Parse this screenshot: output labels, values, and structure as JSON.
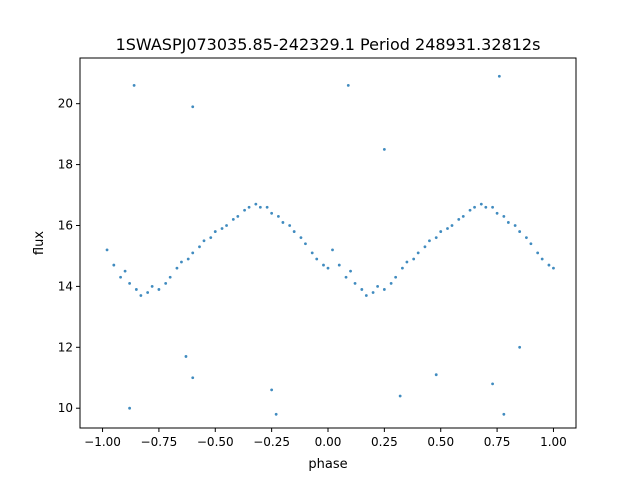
{
  "chart_data": {
    "type": "scatter",
    "title": "1SWASPJ073035.85-242329.1 Period 248931.32812s",
    "xlabel": "phase",
    "ylabel": "flux",
    "xlim": [
      -1.1,
      1.1
    ],
    "ylim": [
      9.35,
      21.5
    ],
    "x_ticks": [
      -1.0,
      -0.75,
      -0.5,
      -0.25,
      0.0,
      0.25,
      0.5,
      0.75,
      1.0
    ],
    "x_tick_labels": [
      "−1.00",
      "−0.75",
      "−0.50",
      "−0.25",
      "0.00",
      "0.25",
      "0.50",
      "0.75",
      "1.00"
    ],
    "y_ticks": [
      10,
      12,
      14,
      16,
      18,
      20
    ],
    "y_tick_labels": [
      "10",
      "12",
      "14",
      "16",
      "18",
      "20"
    ],
    "grid": false,
    "legend": "none",
    "point_color": "#1f77b4",
    "series": [
      {
        "phase_folded": true,
        "points": [
          [
            -0.98,
            15.2
          ],
          [
            -0.95,
            14.7
          ],
          [
            -0.92,
            14.3
          ],
          [
            -0.9,
            14.5
          ],
          [
            -0.88,
            14.1
          ],
          [
            -0.85,
            13.9
          ],
          [
            -0.83,
            13.7
          ],
          [
            -0.8,
            13.8
          ],
          [
            -0.78,
            14.0
          ],
          [
            -0.75,
            13.9
          ],
          [
            -0.72,
            14.1
          ],
          [
            -0.7,
            14.3
          ],
          [
            -0.67,
            14.6
          ],
          [
            -0.65,
            14.8
          ],
          [
            -0.62,
            14.9
          ],
          [
            -0.6,
            15.1
          ],
          [
            -0.57,
            15.3
          ],
          [
            -0.55,
            15.5
          ],
          [
            -0.52,
            15.6
          ],
          [
            -0.5,
            15.8
          ],
          [
            -0.47,
            15.9
          ],
          [
            -0.45,
            16.0
          ],
          [
            -0.42,
            16.2
          ],
          [
            -0.4,
            16.3
          ],
          [
            -0.37,
            16.5
          ],
          [
            -0.35,
            16.6
          ],
          [
            -0.32,
            16.7
          ],
          [
            -0.3,
            16.6
          ],
          [
            -0.27,
            16.6
          ],
          [
            -0.25,
            16.4
          ],
          [
            -0.22,
            16.3
          ],
          [
            -0.2,
            16.1
          ],
          [
            -0.17,
            16.0
          ],
          [
            -0.15,
            15.8
          ],
          [
            -0.12,
            15.6
          ],
          [
            -0.1,
            15.4
          ],
          [
            -0.07,
            15.1
          ],
          [
            -0.05,
            14.9
          ],
          [
            -0.02,
            14.7
          ],
          [
            0.0,
            14.6
          ],
          [
            0.02,
            15.2
          ],
          [
            0.05,
            14.7
          ],
          [
            0.08,
            14.3
          ],
          [
            0.1,
            14.5
          ],
          [
            0.12,
            14.1
          ],
          [
            0.15,
            13.9
          ],
          [
            0.17,
            13.7
          ],
          [
            0.2,
            13.8
          ],
          [
            0.22,
            14.0
          ],
          [
            0.25,
            13.9
          ],
          [
            0.28,
            14.1
          ],
          [
            0.3,
            14.3
          ],
          [
            0.33,
            14.6
          ],
          [
            0.35,
            14.8
          ],
          [
            0.38,
            14.9
          ],
          [
            0.4,
            15.1
          ],
          [
            0.43,
            15.3
          ],
          [
            0.45,
            15.5
          ],
          [
            0.48,
            15.6
          ],
          [
            0.5,
            15.8
          ],
          [
            0.53,
            15.9
          ],
          [
            0.55,
            16.0
          ],
          [
            0.58,
            16.2
          ],
          [
            0.6,
            16.3
          ],
          [
            0.63,
            16.5
          ],
          [
            0.65,
            16.6
          ],
          [
            0.68,
            16.7
          ],
          [
            0.7,
            16.6
          ],
          [
            0.73,
            16.6
          ],
          [
            0.75,
            16.4
          ],
          [
            0.78,
            16.3
          ],
          [
            0.8,
            16.1
          ],
          [
            0.83,
            16.0
          ],
          [
            0.85,
            15.8
          ],
          [
            0.88,
            15.6
          ],
          [
            0.9,
            15.4
          ],
          [
            0.93,
            15.1
          ],
          [
            0.95,
            14.9
          ],
          [
            0.98,
            14.7
          ],
          [
            1.0,
            14.6
          ],
          [
            -0.86,
            20.6
          ],
          [
            -0.6,
            11.0
          ],
          [
            -0.23,
            9.8
          ],
          [
            0.09,
            20.6
          ],
          [
            0.32,
            10.4
          ],
          [
            0.73,
            10.8
          ],
          [
            0.76,
            20.9
          ],
          [
            0.78,
            9.8
          ],
          [
            -0.88,
            10.0
          ],
          [
            -0.63,
            11.7
          ],
          [
            0.48,
            11.1
          ],
          [
            -0.25,
            10.6
          ],
          [
            0.25,
            18.5
          ],
          [
            -0.6,
            19.9
          ],
          [
            0.85,
            12.0
          ]
        ]
      }
    ]
  }
}
